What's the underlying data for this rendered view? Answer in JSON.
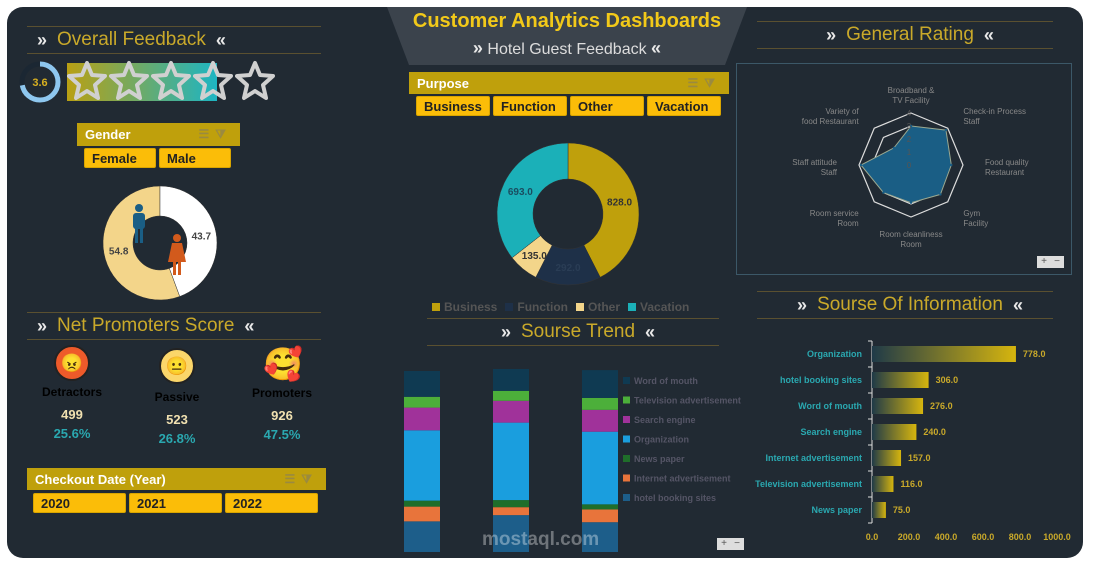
{
  "header": {
    "title": "Customer Analytics Dashboards",
    "subtitle": "Hotel Guest Feedback"
  },
  "overall": {
    "title": "Overall Feedback",
    "rating": "3.6",
    "rating_value": 3.6,
    "max_stars": 5
  },
  "gender": {
    "title": "Gender",
    "options": [
      "Female",
      "Male"
    ],
    "chart": {
      "type": "pie",
      "categories": [
        "Female",
        "Male"
      ],
      "values": [
        54.8,
        43.7
      ],
      "labels": [
        "54.8",
        "43.7"
      ],
      "colors": [
        "#f3d58a",
        "#ffffff"
      ]
    }
  },
  "nps": {
    "title": "Net Promoters Score",
    "groups": [
      {
        "label": "Detractors",
        "count": "499",
        "pct": "25.6%"
      },
      {
        "label": "Passive",
        "count": "523",
        "pct": "26.8%"
      },
      {
        "label": "Promoters",
        "count": "926",
        "pct": "47.5%"
      }
    ]
  },
  "checkout": {
    "title": "Checkout Date (Year)",
    "options": [
      "2020",
      "2021",
      "2022"
    ]
  },
  "purpose": {
    "title": "Purpose",
    "options": [
      "Business",
      "Function",
      "Other",
      "Vacation"
    ]
  },
  "chart_data": [
    {
      "type": "pie",
      "categories": [
        "Business",
        "Function",
        "Other",
        "Vacation"
      ],
      "values": [
        828,
        292,
        135,
        693
      ],
      "labels": [
        "828.0",
        "292.0",
        "135.0",
        "693.0"
      ],
      "colors": [
        "#bfa00c",
        "#1e3048",
        "#f3d58a",
        "#1bb0b8"
      ],
      "legend": "bottom"
    },
    {
      "type": "radar",
      "title": "General Rating",
      "categories": [
        "Broadband & TV Facility",
        "Check-in Process Staff",
        "Food quality Restaurant",
        "Gym Facility",
        "Room cleanliness Room",
        "Room service Room",
        "Staff attitude Staff",
        "Variety of food Restaurant"
      ],
      "values": [
        3.0,
        3.8,
        3.1,
        3.2,
        2.9,
        3.0,
        3.85,
        1.86
      ],
      "ticks": [
        "0",
        "1",
        "2",
        "3",
        "4"
      ],
      "range": [
        0,
        4
      ],
      "color": "#1a5e85"
    },
    {
      "type": "bar",
      "title": "Sourse Trend",
      "stacked": true,
      "categories": [
        "",
        "",
        ""
      ],
      "series": [
        {
          "name": "Word of mouth",
          "color": "#0f3a52",
          "values": [
            91,
            77,
            98
          ]
        },
        {
          "name": "Television advertisement",
          "color": "#4caf3a",
          "values": [
            38,
            35,
            42
          ]
        },
        {
          "name": "Search engine",
          "color": "#a0329a",
          "values": [
            80,
            77,
            77
          ]
        },
        {
          "name": "Organization",
          "color": "#1a9ede",
          "values": [
            248,
            273,
            256
          ]
        },
        {
          "name": "News paper",
          "color": "#1f6e2a",
          "values": [
            21,
            25,
            18
          ]
        },
        {
          "name": "Internet advertisement",
          "color": "#e8743b",
          "values": [
            52,
            28,
            45
          ]
        },
        {
          "name": "hotel booking sites",
          "color": "#1d5e8a",
          "values": [
            108,
            130,
            105
          ]
        }
      ],
      "legend": "right"
    },
    {
      "type": "bar",
      "orientation": "horizontal",
      "title": "Sourse Of Information",
      "categories": [
        "Organization",
        "hotel booking sites",
        "Word of mouth",
        "Search engine",
        "Internet advertisement",
        "Television advertisement",
        "News paper"
      ],
      "values": [
        778,
        306,
        276,
        240,
        157,
        116,
        75
      ],
      "labels": [
        "778.0",
        "306.0",
        "276.0",
        "240.0",
        "157.0",
        "116.0",
        "75.0"
      ],
      "xticks": [
        "0.0",
        "200.0",
        "400.0",
        "600.0",
        "800.0",
        "1000.0"
      ],
      "xlim": [
        0,
        1000
      ]
    }
  ],
  "general_rating": {
    "title": "General Rating"
  },
  "trend": {
    "title": "Sourse Trend"
  },
  "info": {
    "title": "Sourse Of Information"
  },
  "zoom": {
    "plus": "+",
    "minus": "−"
  },
  "watermark": {
    "text": "mostaql.com"
  }
}
